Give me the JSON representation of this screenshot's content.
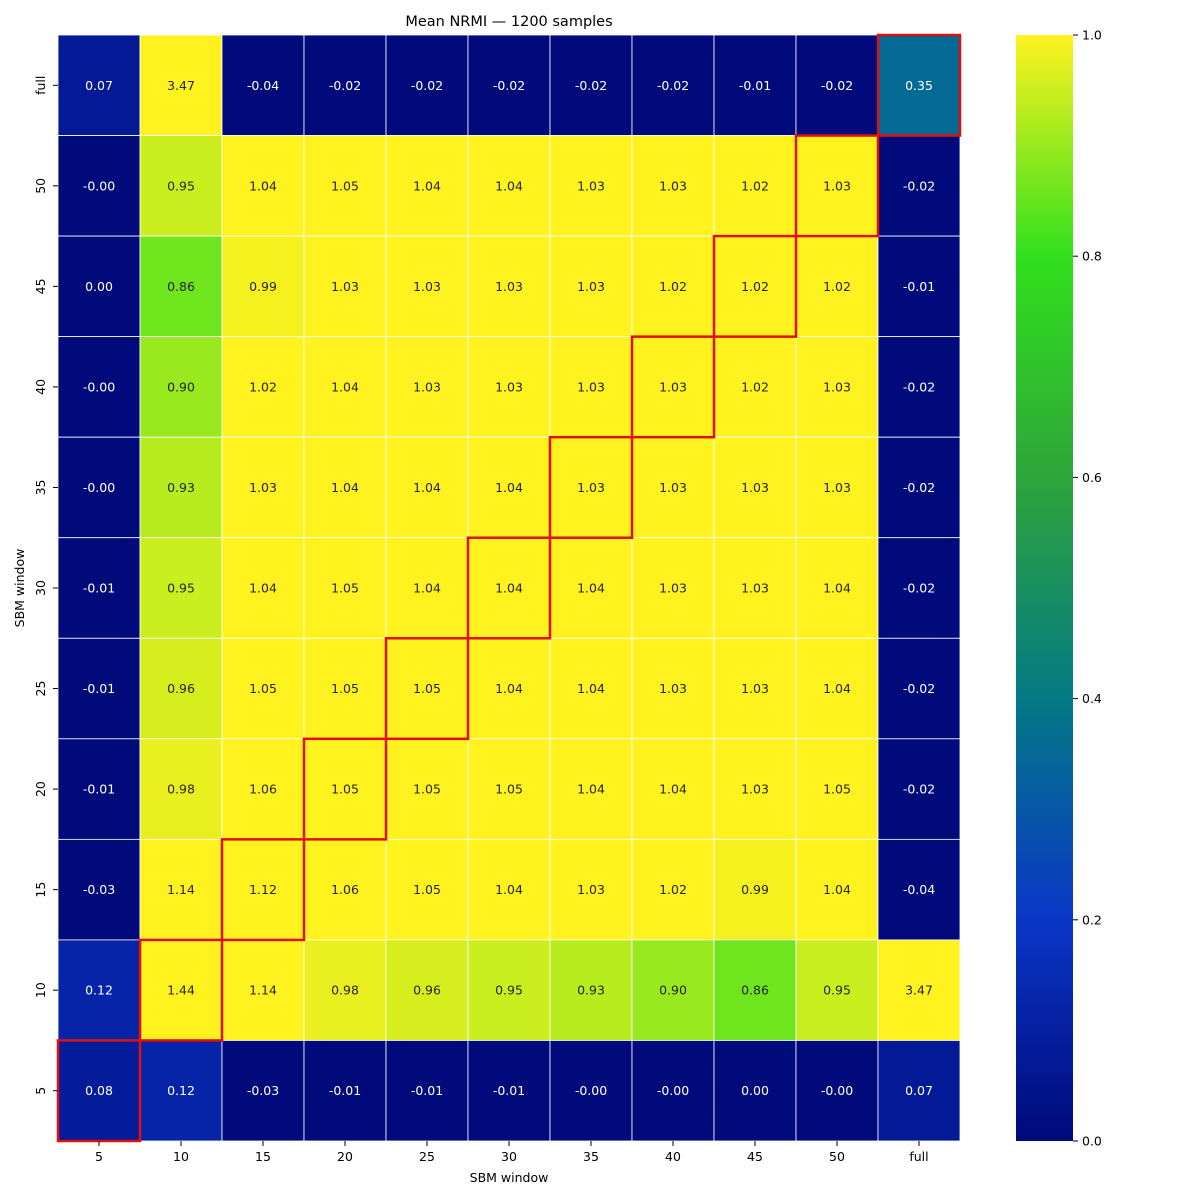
{
  "chart_data": {
    "type": "heatmap",
    "title": "Mean NRMI — 1200 samples",
    "xlabel": "SBM window",
    "ylabel": "SBM window",
    "x_categories": [
      "5",
      "10",
      "15",
      "20",
      "25",
      "30",
      "35",
      "40",
      "45",
      "50",
      "full"
    ],
    "y_categories": [
      "full",
      "50",
      "45",
      "40",
      "35",
      "30",
      "25",
      "20",
      "15",
      "10",
      "5"
    ],
    "values": [
      [
        0.07,
        3.47,
        -0.04,
        -0.02,
        -0.02,
        -0.02,
        -0.02,
        -0.02,
        -0.01,
        -0.02,
        0.35
      ],
      [
        -0.0,
        0.95,
        1.04,
        1.05,
        1.04,
        1.04,
        1.03,
        1.03,
        1.02,
        1.03,
        -0.02
      ],
      [
        0.0,
        0.86,
        0.99,
        1.03,
        1.03,
        1.03,
        1.03,
        1.02,
        1.02,
        1.02,
        -0.01
      ],
      [
        -0.0,
        0.9,
        1.02,
        1.04,
        1.03,
        1.03,
        1.03,
        1.03,
        1.02,
        1.03,
        -0.02
      ],
      [
        -0.0,
        0.93,
        1.03,
        1.04,
        1.04,
        1.04,
        1.03,
        1.03,
        1.03,
        1.03,
        -0.02
      ],
      [
        -0.01,
        0.95,
        1.04,
        1.05,
        1.04,
        1.04,
        1.04,
        1.03,
        1.03,
        1.04,
        -0.02
      ],
      [
        -0.01,
        0.96,
        1.05,
        1.05,
        1.05,
        1.04,
        1.04,
        1.03,
        1.03,
        1.04,
        -0.02
      ],
      [
        -0.01,
        0.98,
        1.06,
        1.05,
        1.05,
        1.05,
        1.04,
        1.04,
        1.03,
        1.05,
        -0.02
      ],
      [
        -0.03,
        1.14,
        1.12,
        1.06,
        1.05,
        1.04,
        1.03,
        1.02,
        0.99,
        1.04,
        -0.04
      ],
      [
        0.12,
        1.44,
        1.14,
        0.98,
        0.96,
        0.95,
        0.93,
        0.9,
        0.86,
        0.95,
        3.47
      ],
      [
        0.08,
        0.12,
        -0.03,
        -0.01,
        -0.01,
        -0.01,
        -0.0,
        -0.0,
        0.0,
        -0.0,
        0.07
      ]
    ],
    "label_strings": [
      [
        "0.07",
        "3.47",
        "-0.04",
        "-0.02",
        "-0.02",
        "-0.02",
        "-0.02",
        "-0.02",
        "-0.01",
        "-0.02",
        "0.35"
      ],
      [
        "-0.00",
        "0.95",
        "1.04",
        "1.05",
        "1.04",
        "1.04",
        "1.03",
        "1.03",
        "1.02",
        "1.03",
        "-0.02"
      ],
      [
        "0.00",
        "0.86",
        "0.99",
        "1.03",
        "1.03",
        "1.03",
        "1.03",
        "1.02",
        "1.02",
        "1.02",
        "-0.01"
      ],
      [
        "-0.00",
        "0.90",
        "1.02",
        "1.04",
        "1.03",
        "1.03",
        "1.03",
        "1.03",
        "1.02",
        "1.03",
        "-0.02"
      ],
      [
        "-0.00",
        "0.93",
        "1.03",
        "1.04",
        "1.04",
        "1.04",
        "1.03",
        "1.03",
        "1.03",
        "1.03",
        "-0.02"
      ],
      [
        "-0.01",
        "0.95",
        "1.04",
        "1.05",
        "1.04",
        "1.04",
        "1.04",
        "1.03",
        "1.03",
        "1.04",
        "-0.02"
      ],
      [
        "-0.01",
        "0.96",
        "1.05",
        "1.05",
        "1.05",
        "1.04",
        "1.04",
        "1.03",
        "1.03",
        "1.04",
        "-0.02"
      ],
      [
        "-0.01",
        "0.98",
        "1.06",
        "1.05",
        "1.05",
        "1.05",
        "1.04",
        "1.04",
        "1.03",
        "1.05",
        "-0.02"
      ],
      [
        "-0.03",
        "1.14",
        "1.12",
        "1.06",
        "1.05",
        "1.04",
        "1.03",
        "1.02",
        "0.99",
        "1.04",
        "-0.04"
      ],
      [
        "0.12",
        "1.44",
        "1.14",
        "0.98",
        "0.96",
        "0.95",
        "0.93",
        "0.90",
        "0.86",
        "0.95",
        "3.47"
      ],
      [
        "0.08",
        "0.12",
        "-0.03",
        "-0.01",
        "-0.01",
        "-0.01",
        "-0.00",
        "-0.00",
        "0.00",
        "-0.00",
        "0.07"
      ]
    ],
    "colorbar": {
      "vmin": 0.0,
      "vmax": 1.0,
      "ticks": [
        "0.0",
        "0.2",
        "0.4",
        "0.6",
        "0.8",
        "1.0"
      ],
      "colormap": "gnuplot2-like blue-teal-green-yellow",
      "stops": [
        {
          "v": 0.0,
          "color": "#000a7a"
        },
        {
          "v": 0.2,
          "color": "#0a36c7"
        },
        {
          "v": 0.4,
          "color": "#037a85"
        },
        {
          "v": 0.6,
          "color": "#2ea53a"
        },
        {
          "v": 0.8,
          "color": "#31e01c"
        },
        {
          "v": 1.0,
          "color": "#fff21f"
        }
      ]
    },
    "highlight": {
      "description_color": "#e01010",
      "diagonal_cells": [
        {
          "row": 0,
          "col": 10
        },
        {
          "row": 1,
          "col": 9
        },
        {
          "row": 2,
          "col": 8
        },
        {
          "row": 3,
          "col": 7
        },
        {
          "row": 4,
          "col": 6
        },
        {
          "row": 5,
          "col": 5
        },
        {
          "row": 6,
          "col": 4
        },
        {
          "row": 7,
          "col": 3
        },
        {
          "row": 8,
          "col": 2
        },
        {
          "row": 9,
          "col": 1
        },
        {
          "row": 10,
          "col": 0
        }
      ]
    },
    "grid": true,
    "legend": "colorbar-right"
  }
}
